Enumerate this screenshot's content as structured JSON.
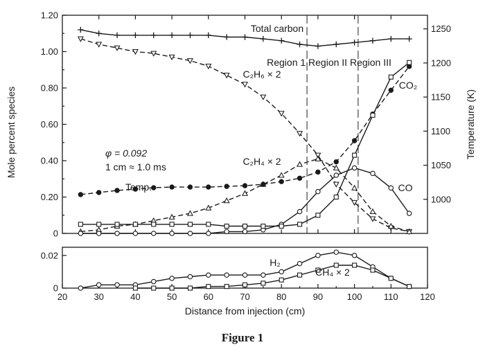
{
  "figure": {
    "caption": "Figure 1"
  },
  "chart_data": [
    {
      "type": "line",
      "panel": "upper",
      "xlim": [
        20,
        120
      ],
      "ylim": [
        0,
        1.2
      ],
      "y2lim": [
        950,
        1270
      ],
      "ylabel": "Mole percent species",
      "y2label": "Temperature (K)",
      "yticks": [
        "0",
        "0.20",
        "0.40",
        "0.60",
        "0.80",
        "1.00",
        "1.20"
      ],
      "y2ticks": [
        "1000",
        "1050",
        "1100",
        "1150",
        "1200",
        "1250"
      ],
      "region_boundaries": [
        87,
        101
      ],
      "annotations": {
        "regions": "Region 1 Region II Region III",
        "phi": "φ = 0.092",
        "scale": "1 cm ≈ 1.0 ms"
      },
      "series": [
        {
          "name": "Total carbon",
          "label": "Total carbon",
          "marker": "plus",
          "dashed": false,
          "x": [
            25,
            30,
            35,
            40,
            45,
            50,
            55,
            60,
            65,
            70,
            75,
            80,
            85,
            90,
            95,
            100,
            105,
            110,
            115
          ],
          "y": [
            1.12,
            1.1,
            1.09,
            1.09,
            1.09,
            1.09,
            1.09,
            1.09,
            1.08,
            1.08,
            1.07,
            1.06,
            1.04,
            1.03,
            1.04,
            1.05,
            1.06,
            1.07,
            1.07
          ]
        },
        {
          "name": "C2H6 × 2",
          "label": "C₂H₆ × 2",
          "marker": "triangle-down",
          "dashed": true,
          "x": [
            25,
            30,
            35,
            40,
            45,
            50,
            55,
            60,
            65,
            70,
            75,
            80,
            85,
            90,
            95,
            100,
            105,
            110,
            115
          ],
          "y": [
            1.07,
            1.04,
            1.02,
            1.0,
            0.99,
            0.97,
            0.95,
            0.92,
            0.87,
            0.82,
            0.75,
            0.66,
            0.55,
            0.43,
            0.27,
            0.17,
            0.08,
            0.03,
            0.01
          ]
        },
        {
          "name": "C2H4 × 2",
          "label": "C₂H₄ × 2",
          "marker": "triangle-up",
          "dashed": true,
          "x": [
            25,
            30,
            35,
            40,
            45,
            50,
            55,
            60,
            65,
            70,
            75,
            80,
            85,
            90,
            95,
            100,
            105,
            110,
            115
          ],
          "y": [
            0.01,
            0.02,
            0.04,
            0.05,
            0.07,
            0.09,
            0.11,
            0.14,
            0.18,
            0.22,
            0.27,
            0.32,
            0.38,
            0.41,
            0.36,
            0.25,
            0.12,
            0.04,
            0.01
          ]
        },
        {
          "name": "Temp.",
          "label": "Temp.",
          "marker": "circle-filled",
          "dashed": true,
          "axis": "right",
          "x": [
            25,
            30,
            35,
            40,
            45,
            50,
            55,
            60,
            65,
            70,
            75,
            80,
            85,
            90,
            95,
            100,
            105,
            110,
            115
          ],
          "y": [
            1007,
            1010,
            1013,
            1015,
            1017,
            1018,
            1018,
            1018,
            1019,
            1020,
            1022,
            1026,
            1031,
            1040,
            1055,
            1086,
            1125,
            1160,
            1195
          ]
        },
        {
          "name": "CO",
          "label": "CO",
          "marker": "circle-open",
          "dashed": false,
          "x": [
            25,
            30,
            35,
            40,
            45,
            50,
            55,
            60,
            65,
            70,
            75,
            80,
            85,
            90,
            95,
            100,
            105,
            110,
            115
          ],
          "y": [
            0,
            0,
            0,
            0,
            0,
            0,
            0,
            0,
            0.01,
            0.01,
            0.02,
            0.05,
            0.12,
            0.23,
            0.32,
            0.36,
            0.33,
            0.25,
            0.11
          ]
        },
        {
          "name": "CO2",
          "label": "CO₂",
          "marker": "square",
          "dashed": false,
          "x": [
            25,
            30,
            35,
            40,
            45,
            50,
            55,
            60,
            65,
            70,
            75,
            80,
            85,
            90,
            95,
            100,
            105,
            110,
            115
          ],
          "y": [
            0.05,
            0.05,
            0.05,
            0.05,
            0.05,
            0.05,
            0.05,
            0.05,
            0.04,
            0.04,
            0.04,
            0.04,
            0.05,
            0.1,
            0.2,
            0.43,
            0.65,
            0.86,
            0.94
          ]
        }
      ]
    },
    {
      "type": "line",
      "panel": "lower",
      "xlabel": "Distance from injection (cm)",
      "xlim": [
        20,
        120
      ],
      "ylim": [
        0,
        0.025
      ],
      "xticks": [
        "20",
        "30",
        "40",
        "50",
        "60",
        "70",
        "80",
        "90",
        "100",
        "110",
        "120"
      ],
      "yticks": [
        "0",
        "0.02"
      ],
      "series": [
        {
          "name": "H2",
          "label": "H₂",
          "marker": "circle-open",
          "dashed": false,
          "x": [
            25,
            30,
            35,
            40,
            45,
            50,
            55,
            60,
            65,
            70,
            75,
            80,
            85,
            90,
            95,
            100,
            105,
            110,
            115
          ],
          "y": [
            0,
            0.002,
            0.002,
            0.002,
            0.004,
            0.006,
            0.007,
            0.008,
            0.008,
            0.008,
            0.008,
            0.01,
            0.015,
            0.02,
            0.022,
            0.02,
            0.013,
            0.006,
            0.001
          ]
        },
        {
          "name": "CH4 × 2",
          "label": "CH₄ × 2",
          "marker": "square",
          "dashed": false,
          "x": [
            40,
            45,
            50,
            55,
            60,
            65,
            70,
            75,
            80,
            85,
            90,
            95,
            100,
            105,
            110,
            115
          ],
          "y": [
            0,
            0,
            0,
            0,
            0.001,
            0.001,
            0.002,
            0.003,
            0.005,
            0.008,
            0.011,
            0.014,
            0.014,
            0.011,
            0.006,
            0.001
          ]
        }
      ]
    }
  ]
}
